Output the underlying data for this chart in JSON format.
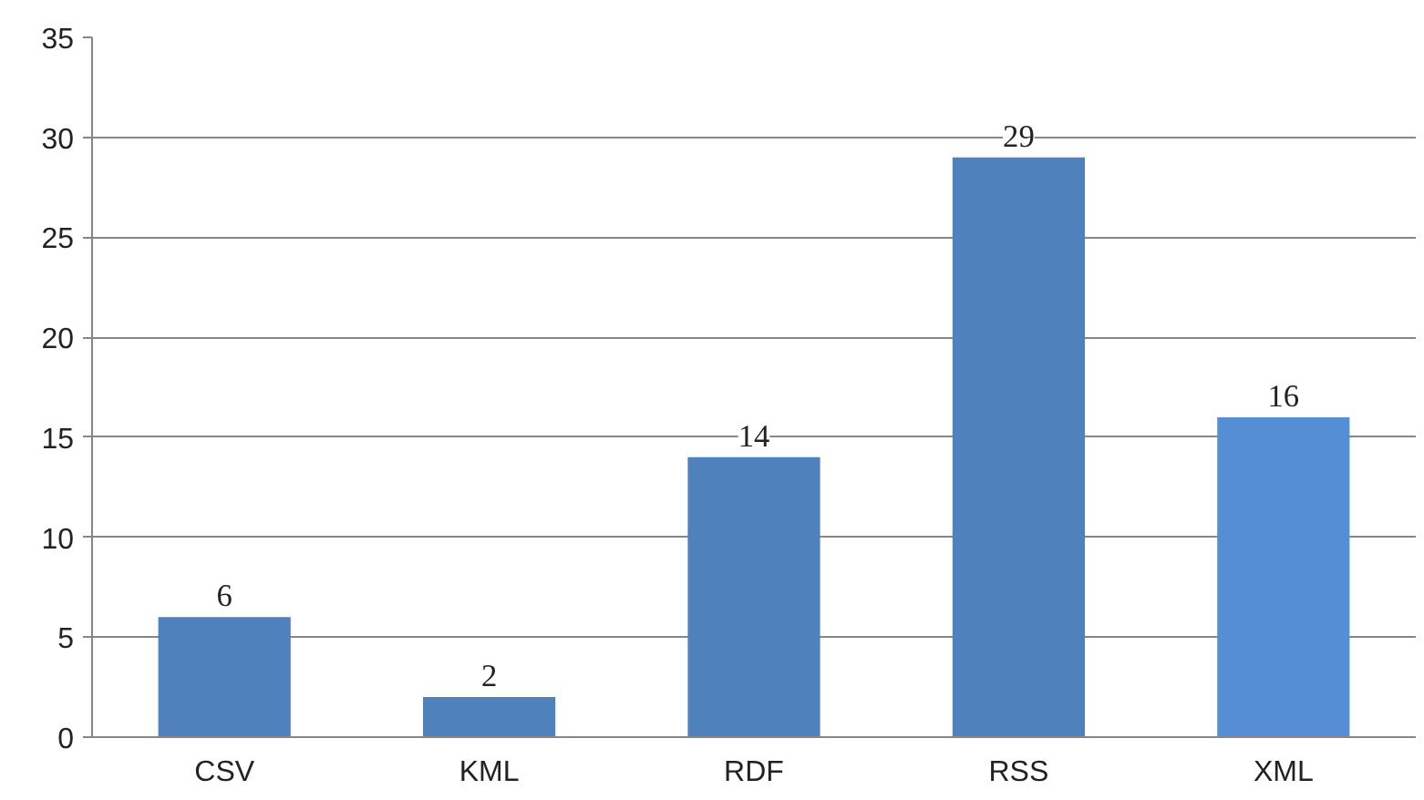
{
  "chart_data": {
    "type": "bar",
    "categories": [
      "CSV",
      "KML",
      "RDF",
      "RSS",
      "XML"
    ],
    "values": [
      6,
      2,
      14,
      29,
      16
    ],
    "colors": [
      "#4f81bd",
      "#4f81bd",
      "#4f81bd",
      "#4f81bd",
      "#558ed5"
    ],
    "ylim": [
      0,
      35
    ],
    "yticks": [
      0,
      5,
      10,
      15,
      20,
      25,
      30,
      35
    ],
    "grid": "y",
    "data_labels": true
  }
}
